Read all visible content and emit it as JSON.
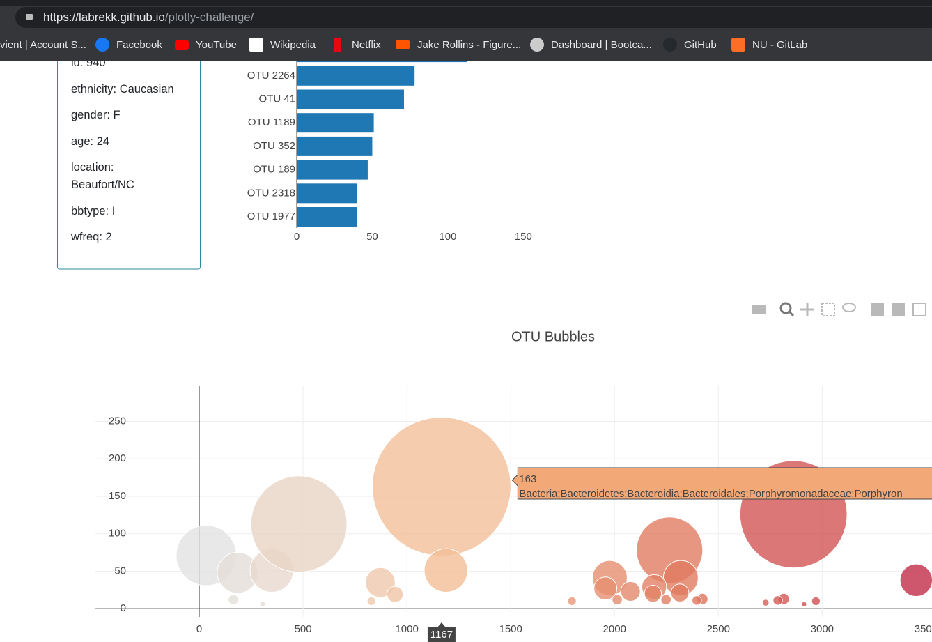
{
  "browser": {
    "url_host": "https://labrekk.github.io",
    "url_path": "/plotly-challenge/",
    "bookmarks": [
      "vient | Account S...",
      "Facebook",
      "YouTube",
      "Wikipedia",
      "Netflix",
      "Jake Rollins - Figure...",
      "Dashboard | Bootca...",
      "GitHub",
      "NU - GitLab"
    ]
  },
  "demographics": [
    "id: 940",
    "ethnicity: Caucasian",
    "gender: F",
    "age: 24",
    "location: Beaufort/NC",
    "bbtype: I",
    "wfreq: 2"
  ],
  "chart_data": [
    {
      "type": "hbar",
      "categories": [
        null,
        "OTU 2264",
        "OTU 41",
        "OTU 1189",
        "OTU 352",
        "OTU 189",
        "OTU 2318",
        "OTU 1977"
      ],
      "values": [
        113,
        78,
        71,
        51,
        50,
        47,
        40,
        40
      ],
      "color": "#1f77b4",
      "xlim": [
        0,
        160
      ],
      "xticks": [
        0,
        50,
        100,
        150
      ],
      "grid": false
    },
    {
      "type": "bubble",
      "title": "OTU Bubbles",
      "x": [
        34,
        185,
        349,
        480,
        1167,
        872,
        943,
        1188,
        164,
        305,
        829,
        1977,
        1956,
        2077,
        2265,
        2319,
        2191,
        2315,
        2185,
        2248,
        2013,
        2862,
        3453,
        1795,
        2423,
        2396,
        2815,
        2786,
        2970,
        2913,
        2728
      ],
      "values": [
        71,
        48,
        51,
        113,
        163,
        35,
        19,
        51,
        12,
        6,
        10,
        41,
        27,
        23,
        78,
        41,
        29,
        21,
        20,
        12,
        12,
        126,
        38,
        10,
        13,
        11,
        13,
        11,
        10,
        6,
        8
      ],
      "colorscale": [
        "#e2e2e2",
        "#f3bf98",
        "#e07a5f",
        "#c22d48"
      ],
      "xlim": [
        -500,
        3700
      ],
      "ylim": [
        -11,
        297
      ],
      "xticks": [
        0,
        500,
        1000,
        1500,
        2000,
        2500,
        3000,
        3500
      ],
      "yticks": [
        0,
        50,
        100,
        150,
        200,
        250
      ],
      "grid": true,
      "hover_text": "Bacteria;Bacteroidetes;Bacteroidia;Bacteroidales;Porphyromonadaceae;Porphyron"
    }
  ]
}
